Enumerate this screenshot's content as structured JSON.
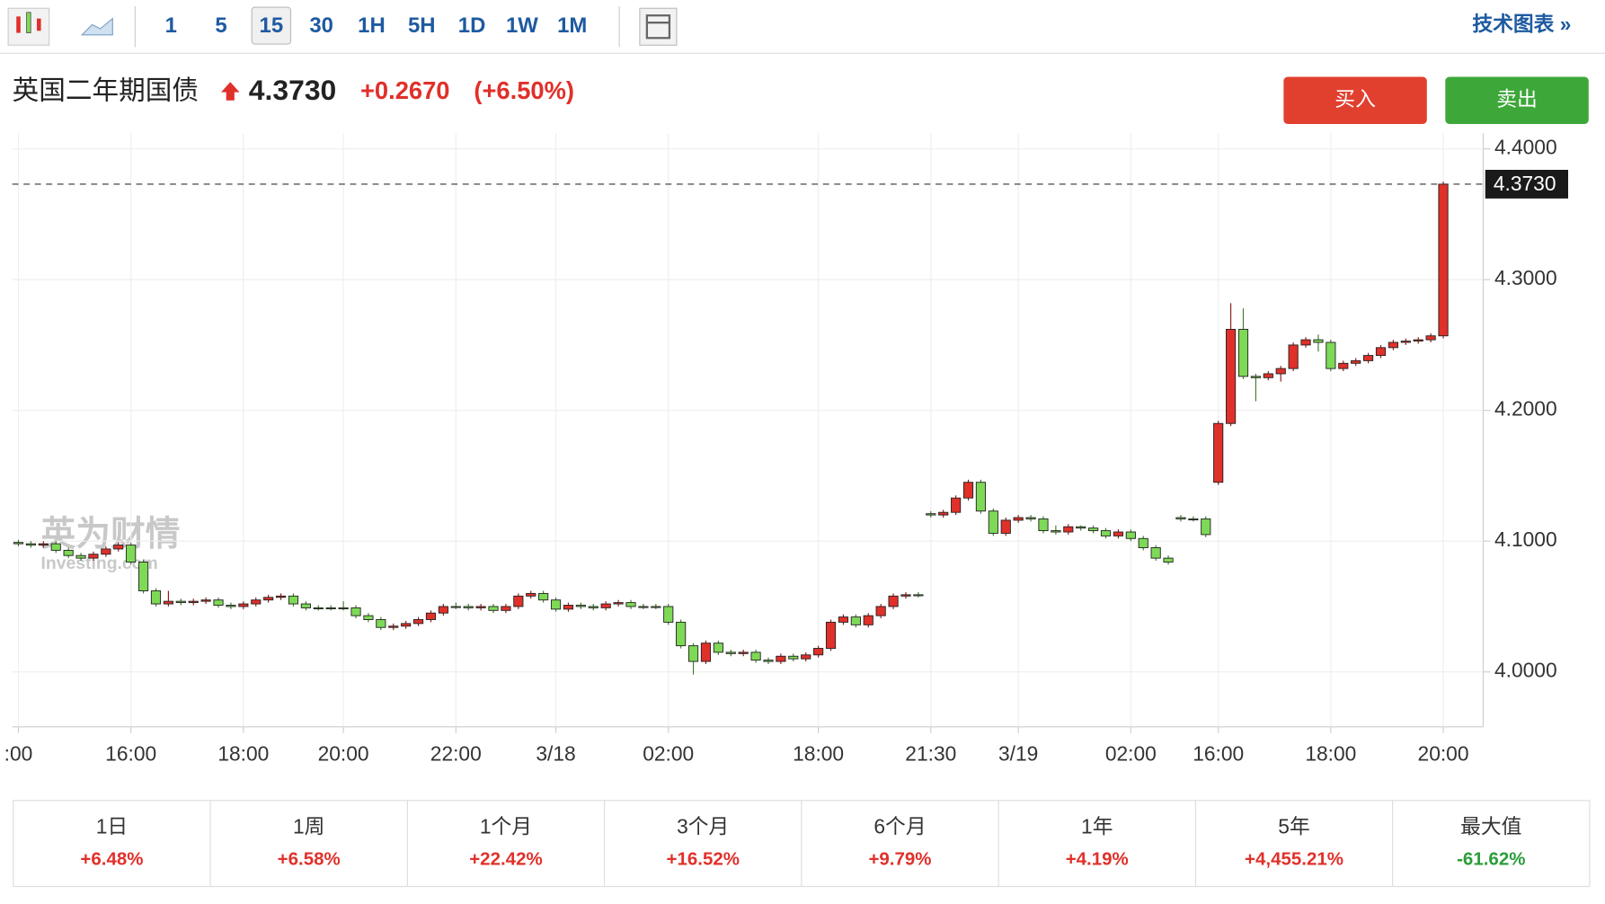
{
  "toolbar": {
    "intervals": [
      "1",
      "5",
      "15",
      "30",
      "1H",
      "5H",
      "1D",
      "1W",
      "1M"
    ],
    "selected": 2,
    "link": "技术图表 »"
  },
  "header": {
    "title": "英国二年期国债",
    "price": "4.3730",
    "change": "+0.2670",
    "change_pct": "(+6.50%)",
    "buy": "买入",
    "sell": "卖出"
  },
  "watermark": {
    "brand": "英为财情",
    "site": "Investing.com"
  },
  "performance": [
    {
      "period": "1日",
      "value": "+6.48%",
      "color": "#e0302a"
    },
    {
      "period": "1周",
      "value": "+6.58%",
      "color": "#e0302a"
    },
    {
      "period": "1个月",
      "value": "+22.42%",
      "color": "#e0302a"
    },
    {
      "period": "3个月",
      "value": "+16.52%",
      "color": "#e0302a"
    },
    {
      "period": "6个月",
      "value": "+9.79%",
      "color": "#e0302a"
    },
    {
      "period": "1年",
      "value": "+4.19%",
      "color": "#e0302a"
    },
    {
      "period": "5年",
      "value": "+4,455.21%",
      "color": "#e0302a"
    },
    {
      "period": "最大值",
      "value": "-61.62%",
      "color": "#2a9d3a"
    }
  ],
  "chart_data": {
    "type": "candlestick",
    "up_color": "#e0302a",
    "down_color": "#7ed957",
    "grid": true,
    "last_price": {
      "value": 4.373,
      "label": "4.3730"
    },
    "ylim": [
      3.958,
      4.412
    ],
    "yticks": [
      {
        "value": 4,
        "label": "4.0000"
      },
      {
        "value": 4.1,
        "label": "4.1000"
      },
      {
        "value": 4.2,
        "label": "4.2000"
      },
      {
        "value": 4.3,
        "label": "4.3000"
      },
      {
        "value": 4.4,
        "label": "4.4000"
      }
    ],
    "categories": [
      ":00",
      null,
      null,
      null,
      null,
      null,
      null,
      null,
      null,
      "16:00",
      null,
      null,
      null,
      null,
      null,
      null,
      null,
      null,
      "18:00",
      null,
      null,
      null,
      null,
      null,
      null,
      null,
      "20:00",
      null,
      null,
      null,
      null,
      null,
      null,
      null,
      null,
      "22:00",
      null,
      null,
      null,
      null,
      null,
      null,
      null,
      "3/18",
      null,
      null,
      null,
      null,
      null,
      null,
      null,
      null,
      "02:00",
      null,
      null,
      null,
      null,
      null,
      null,
      null,
      null,
      null,
      null,
      null,
      "18:00",
      null,
      null,
      null,
      null,
      null,
      null,
      null,
      null,
      "21:30",
      null,
      null,
      null,
      null,
      null,
      null,
      "3/19",
      null,
      null,
      null,
      null,
      null,
      null,
      null,
      null,
      "02:00",
      null,
      null,
      null,
      null,
      null,
      null,
      "16:00",
      null,
      null,
      null,
      null,
      null,
      null,
      null,
      null,
      "18:00",
      null,
      null,
      null,
      null,
      null,
      null,
      null,
      null,
      "20:00"
    ],
    "open": [
      4.099,
      4.098,
      4.097,
      4.098,
      4.093,
      4.089,
      4.087,
      4.09,
      4.094,
      4.097,
      4.084,
      4.062,
      4.052,
      4.054,
      4.053,
      4.054,
      4.055,
      4.051,
      4.05,
      4.052,
      4.055,
      4.057,
      4.058,
      4.052,
      4.049,
      4.049,
      4.049,
      4.049,
      4.043,
      4.04,
      4.034,
      4.035,
      4.037,
      4.04,
      4.045,
      4.05,
      4.05,
      4.049,
      4.05,
      4.047,
      4.05,
      4.058,
      4.06,
      4.055,
      4.048,
      4.051,
      4.05,
      4.049,
      4.052,
      4.053,
      4.05,
      4.05,
      4.05,
      4.038,
      4.02,
      4.008,
      4.022,
      4.015,
      4.014,
      4.015,
      4.009,
      4.008,
      4.012,
      4.01,
      4.013,
      4.018,
      4.038,
      4.042,
      4.036,
      4.043,
      4.05,
      4.058,
      4.059,
      4.121,
      4.12,
      4.122,
      4.133,
      4.145,
      4.123,
      4.106,
      4.116,
      4.118,
      4.117,
      4.108,
      4.107,
      4.111,
      4.11,
      4.108,
      4.104,
      4.107,
      4.102,
      4.095,
      4.087,
      4.118,
      4.117,
      4.117,
      4.145,
      4.19,
      4.262,
      4.226,
      4.225,
      4.228,
      4.232,
      4.25,
      4.254,
      4.252,
      4.232,
      4.236,
      4.238,
      4.242,
      4.248,
      4.252,
      4.253,
      4.254,
      4.257
    ],
    "high": [
      4.101,
      4.1,
      4.1,
      4.1,
      4.095,
      4.091,
      4.092,
      4.096,
      4.099,
      4.099,
      4.086,
      4.064,
      4.062,
      4.056,
      4.056,
      4.057,
      4.057,
      4.053,
      4.054,
      4.057,
      4.059,
      4.06,
      4.06,
      4.054,
      4.051,
      4.051,
      4.054,
      4.051,
      4.045,
      4.042,
      4.037,
      4.039,
      4.042,
      4.047,
      4.052,
      4.053,
      4.052,
      4.052,
      4.052,
      4.052,
      4.06,
      4.062,
      4.062,
      4.057,
      4.053,
      4.053,
      4.052,
      4.054,
      4.055,
      4.055,
      4.052,
      4.052,
      4.052,
      4.04,
      4.022,
      4.024,
      4.024,
      4.017,
      4.017,
      4.017,
      4.011,
      4.014,
      4.014,
      4.015,
      4.02,
      4.04,
      4.044,
      4.044,
      4.045,
      4.052,
      4.06,
      4.061,
      4.061,
      4.123,
      4.124,
      4.135,
      4.147,
      4.147,
      4.125,
      4.118,
      4.12,
      4.12,
      4.119,
      4.112,
      4.113,
      4.112,
      4.112,
      4.11,
      4.109,
      4.109,
      4.104,
      4.097,
      4.089,
      4.12,
      4.119,
      4.119,
      4.192,
      4.282,
      4.278,
      4.228,
      4.23,
      4.234,
      4.252,
      4.256,
      4.258,
      4.254,
      4.238,
      4.24,
      4.244,
      4.25,
      4.254,
      4.255,
      4.256,
      4.259,
      4.375
    ],
    "low": [
      4.096,
      4.095,
      4.095,
      4.091,
      4.087,
      4.085,
      4.085,
      4.088,
      4.092,
      4.082,
      4.06,
      4.05,
      4.05,
      4.051,
      4.051,
      4.052,
      4.049,
      4.048,
      4.048,
      4.05,
      4.053,
      4.055,
      4.05,
      4.047,
      4.047,
      4.047,
      4.047,
      4.041,
      4.038,
      4.032,
      4.032,
      4.033,
      4.035,
      4.038,
      4.043,
      4.048,
      4.047,
      4.047,
      4.045,
      4.045,
      4.048,
      4.056,
      4.053,
      4.046,
      4.046,
      4.048,
      4.047,
      4.047,
      4.05,
      4.048,
      4.048,
      4.048,
      4.036,
      4.018,
      3.998,
      4.006,
      4.013,
      4.012,
      4.012,
      4.007,
      4.006,
      4.006,
      4.008,
      4.008,
      4.011,
      4.016,
      4.036,
      4.034,
      4.034,
      4.041,
      4.048,
      4.056,
      4.057,
      4.118,
      4.118,
      4.12,
      4.131,
      4.121,
      4.104,
      4.104,
      4.114,
      4.115,
      4.106,
      4.105,
      4.105,
      4.108,
      4.106,
      4.102,
      4.102,
      4.1,
      4.093,
      4.085,
      4.082,
      4.115,
      4.115,
      4.103,
      4.143,
      4.188,
      4.224,
      4.207,
      4.223,
      4.222,
      4.23,
      4.248,
      4.245,
      4.23,
      4.23,
      4.234,
      4.236,
      4.24,
      4.246,
      4.25,
      4.251,
      4.252,
      4.255
    ],
    "close": [
      4.098,
      4.097,
      4.098,
      4.093,
      4.089,
      4.087,
      4.09,
      4.094,
      4.097,
      4.084,
      4.062,
      4.052,
      4.054,
      4.053,
      4.054,
      4.055,
      4.051,
      4.05,
      4.052,
      4.055,
      4.057,
      4.058,
      4.052,
      4.049,
      4.049,
      4.049,
      4.049,
      4.043,
      4.04,
      4.034,
      4.035,
      4.037,
      4.04,
      4.045,
      4.05,
      4.05,
      4.049,
      4.05,
      4.047,
      4.05,
      4.058,
      4.06,
      4.055,
      4.048,
      4.051,
      4.05,
      4.049,
      4.052,
      4.053,
      4.05,
      4.05,
      4.05,
      4.038,
      4.02,
      4.008,
      4.022,
      4.015,
      4.014,
      4.015,
      4.009,
      4.008,
      4.012,
      4.01,
      4.013,
      4.018,
      4.038,
      4.042,
      4.036,
      4.043,
      4.05,
      4.058,
      4.059,
      4.059,
      4.12,
      4.122,
      4.133,
      4.145,
      4.123,
      4.106,
      4.116,
      4.118,
      4.117,
      4.108,
      4.107,
      4.111,
      4.11,
      4.108,
      4.104,
      4.107,
      4.102,
      4.095,
      4.087,
      4.084,
      4.117,
      4.117,
      4.105,
      4.19,
      4.262,
      4.226,
      4.225,
      4.228,
      4.232,
      4.25,
      4.254,
      4.252,
      4.232,
      4.236,
      4.238,
      4.242,
      4.248,
      4.252,
      4.253,
      4.254,
      4.257,
      4.373
    ]
  }
}
